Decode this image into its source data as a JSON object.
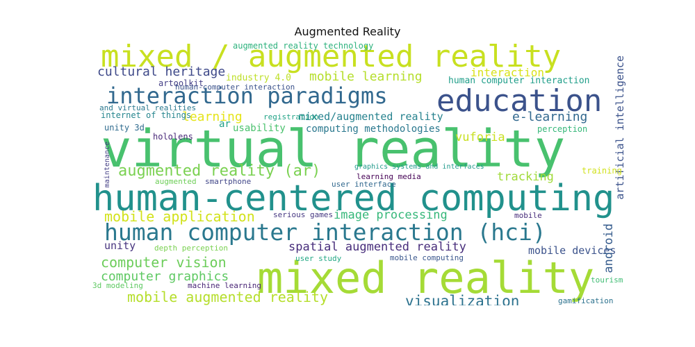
{
  "title": "Augmented Reality",
  "words": [
    {
      "text": "virtual reality",
      "color": "#48c16e"
    },
    {
      "text": "human-centered computing",
      "color": "#21918c"
    },
    {
      "text": "mixed reality",
      "color": "#a5db36"
    },
    {
      "text": "mixed / augmented reality",
      "color": "#c8e020"
    },
    {
      "text": "education",
      "color": "#3b528b"
    },
    {
      "text": "interaction paradigms",
      "color": "#31688e"
    },
    {
      "text": "human computer interaction (hci)",
      "color": "#2a788e"
    },
    {
      "text": "augmented reality (ar)",
      "color": "#7ad151"
    },
    {
      "text": "mobile application",
      "color": "#d2e21b"
    },
    {
      "text": "mobile augmented reality",
      "color": "#b5de2b"
    },
    {
      "text": "computer vision",
      "color": "#6ccd5a"
    },
    {
      "text": "computer graphics",
      "color": "#5ec962"
    },
    {
      "text": "visualization",
      "color": "#2c728e"
    },
    {
      "text": "spatial augmented reality",
      "color": "#472d7b"
    },
    {
      "text": "image processing",
      "color": "#35b779"
    },
    {
      "text": "cultural heritage",
      "color": "#3e4989"
    },
    {
      "text": "mobile learning",
      "color": "#b5de2b"
    },
    {
      "text": "interaction",
      "color": "#d8e219"
    },
    {
      "text": "e-learning",
      "color": "#31688e"
    },
    {
      "text": "learning",
      "color": "#e5e419"
    },
    {
      "text": "mixed/augmented reality",
      "color": "#26828e"
    },
    {
      "text": "computing methodologies",
      "color": "#2a788e"
    },
    {
      "text": "human computer interaction",
      "color": "#1f9e89"
    },
    {
      "text": "tracking",
      "color": "#a0da39"
    },
    {
      "text": "vuforia",
      "color": "#c8e020"
    },
    {
      "text": "unity",
      "color": "#46337e"
    },
    {
      "text": "mobile devices",
      "color": "#3b528b"
    },
    {
      "text": "android",
      "color": "#365c8d"
    },
    {
      "text": "usability",
      "color": "#4ac16d"
    },
    {
      "text": "internet of things",
      "color": "#25858e"
    },
    {
      "text": "unity 3d",
      "color": "#2f6b8e"
    },
    {
      "text": "hololens",
      "color": "#482878"
    },
    {
      "text": "artificial intelligence",
      "color": "#3b528b"
    },
    {
      "text": "perception",
      "color": "#35b779"
    },
    {
      "text": "training",
      "color": "#d0e11c"
    },
    {
      "text": "augmented reality technology",
      "color": "#2db27d"
    },
    {
      "text": "industry 4.0",
      "color": "#bddf26"
    },
    {
      "text": "artoolkit",
      "color": "#433e85"
    },
    {
      "text": "human-computer interaction",
      "color": "#3b528b"
    },
    {
      "text": "and virtual realities",
      "color": "#2a788e"
    },
    {
      "text": "registration",
      "color": "#20a386"
    },
    {
      "text": "graphics systems and interfaces",
      "color": "#1f998a"
    },
    {
      "text": "learning media",
      "color": "#440154"
    },
    {
      "text": "user interface",
      "color": "#31688e"
    },
    {
      "text": "smartphone",
      "color": "#404688"
    },
    {
      "text": "augmented",
      "color": "#6ece58"
    },
    {
      "text": "serious games",
      "color": "#453781"
    },
    {
      "text": "mobile computing",
      "color": "#39568c"
    },
    {
      "text": "user study",
      "color": "#22a884"
    },
    {
      "text": "3d modeling",
      "color": "#5ec962"
    },
    {
      "text": "machine learning",
      "color": "#482475"
    },
    {
      "text": "depth perception",
      "color": "#7ad151"
    },
    {
      "text": "gamification",
      "color": "#2c728e"
    },
    {
      "text": "tourism",
      "color": "#3fbc73"
    },
    {
      "text": "maintenance",
      "color": "#433e85"
    },
    {
      "text": "ar",
      "color": "#1fa088"
    },
    {
      "text": "mobile",
      "color": "#472c7a"
    }
  ]
}
